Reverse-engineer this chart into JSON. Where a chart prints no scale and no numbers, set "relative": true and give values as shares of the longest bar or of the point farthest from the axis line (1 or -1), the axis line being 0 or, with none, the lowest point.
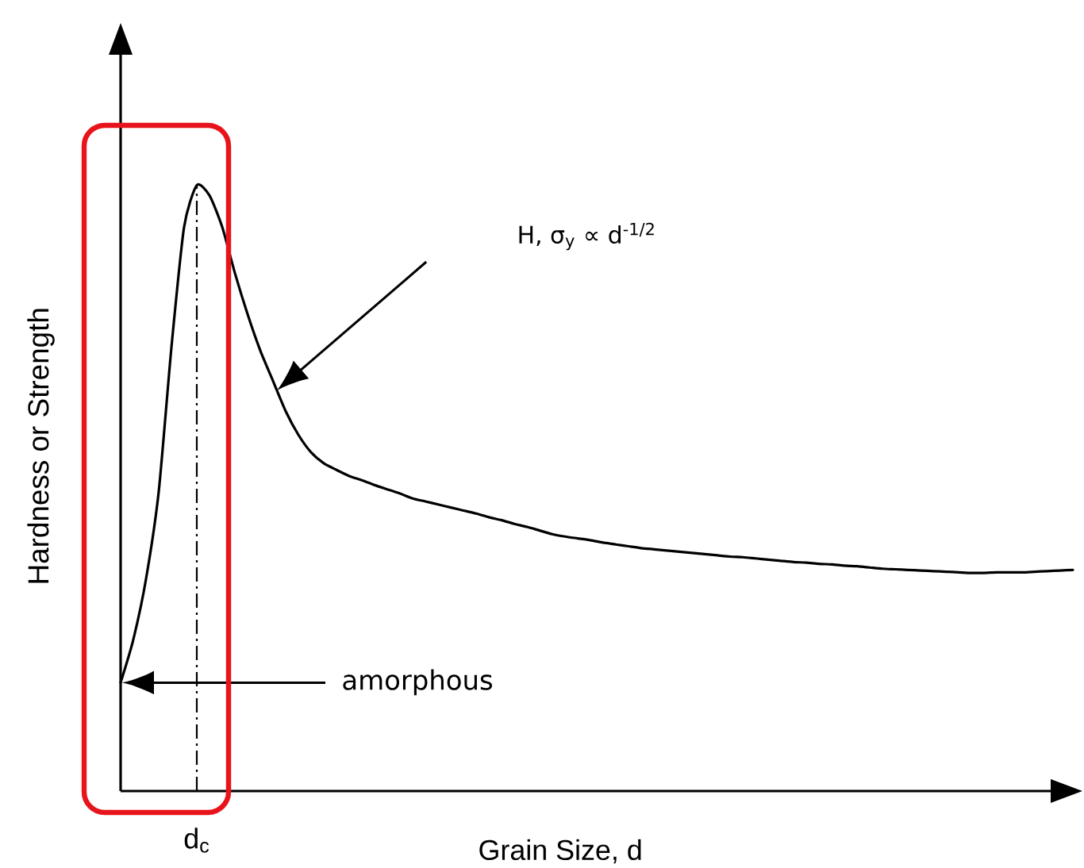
{
  "chart_data": {
    "type": "line",
    "relative": true,
    "xlabel": "Grain Size, d",
    "ylabel": "Hardness or Strength",
    "categories": [
      null,
      null,
      null,
      null,
      null,
      null,
      null,
      null,
      null,
      null,
      null,
      null,
      null,
      null,
      null,
      null,
      null,
      null,
      null,
      null,
      null,
      null,
      null,
      null,
      null,
      null,
      null,
      null,
      null,
      null,
      null,
      null,
      null,
      null,
      null,
      null,
      null,
      null,
      null,
      null,
      null,
      null,
      null,
      null,
      null,
      null,
      null,
      null,
      null,
      null,
      null,
      null,
      null,
      null,
      null,
      null,
      null,
      null,
      null,
      null,
      null,
      null,
      null,
      null,
      null,
      null,
      null,
      null,
      null,
      null,
      null,
      null,
      null,
      null,
      null,
      null
    ],
    "values": [
      0.179,
      0.25,
      0.35,
      0.494,
      0.732,
      0.931,
      1.0,
      0.983,
      0.931,
      0.855,
      0.787,
      0.727,
      0.677,
      0.627,
      0.588,
      0.559,
      0.541,
      0.53,
      0.52,
      0.513,
      0.505,
      0.498,
      0.491,
      0.483,
      0.478,
      0.473,
      0.468,
      0.463,
      0.458,
      0.452,
      0.447,
      0.441,
      0.436,
      0.43,
      0.424,
      0.42,
      0.417,
      0.414,
      0.41,
      0.407,
      0.404,
      0.401,
      0.399,
      0.397,
      0.395,
      0.393,
      0.391,
      0.389,
      0.387,
      0.386,
      0.384,
      0.382,
      0.38,
      0.378,
      0.377,
      0.375,
      0.374,
      0.372,
      0.371,
      0.369,
      0.367,
      0.366,
      0.365,
      0.364,
      0.363,
      0.362,
      0.361,
      0.36,
      0.36,
      0.361,
      0.361,
      0.361,
      0.362,
      0.363,
      0.364,
      0.365
    ],
    "color": "#000000",
    "tick_labels": false,
    "ref_lines": [
      {
        "axis": "x",
        "value": "d$_{c}$",
        "line_style": "dashdot",
        "color": "#000000"
      }
    ],
    "annotations": [
      "H, σ$_{y}$ ∝ d$^{-1/2}$",
      "amorphous"
    ]
  }
}
